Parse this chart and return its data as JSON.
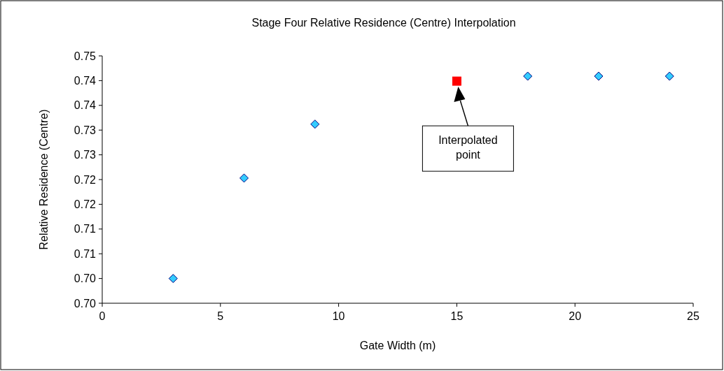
{
  "chart_data": {
    "type": "scatter",
    "title": "Stage Four Relative Residence (Centre) Interpolation",
    "xlabel": "Gate Width (m)",
    "ylabel": "Relative Residence (Centre)",
    "xlim": [
      0,
      25
    ],
    "xticks": [
      0,
      5,
      10,
      15,
      20,
      25
    ],
    "ylim": [
      0.7,
      0.75
    ],
    "yticks": [
      {
        "value": 0.7,
        "label": "0.70"
      },
      {
        "value": 0.705,
        "label": "0.70"
      },
      {
        "value": 0.71,
        "label": "0.71"
      },
      {
        "value": 0.715,
        "label": "0.71"
      },
      {
        "value": 0.72,
        "label": "0.72"
      },
      {
        "value": 0.725,
        "label": "0.72"
      },
      {
        "value": 0.73,
        "label": "0.73"
      },
      {
        "value": 0.735,
        "label": "0.73"
      },
      {
        "value": 0.74,
        "label": "0.74"
      },
      {
        "value": 0.745,
        "label": "0.74"
      },
      {
        "value": 0.75,
        "label": "0.75"
      }
    ],
    "grid": false,
    "series": [
      {
        "color": "#33ccff",
        "marker": "diamond",
        "x": [
          3,
          6,
          9,
          18,
          21,
          24
        ],
        "values": [
          0.705,
          0.7253,
          0.7362,
          0.7459,
          0.7459,
          0.7459
        ]
      },
      {
        "color": "#ff0000",
        "marker": "square",
        "x": [
          15
        ],
        "values": [
          0.7449
        ]
      }
    ],
    "annotations": [
      "Interpolated point"
    ]
  }
}
